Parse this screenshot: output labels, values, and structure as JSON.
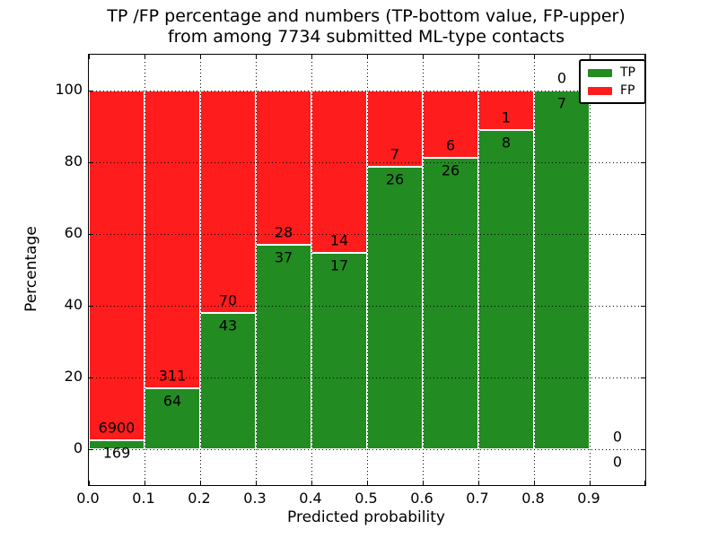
{
  "title": {
    "line1": "TP /FP percentage and numbers (TP-bottom value, FP-upper)",
    "line2": "from among 7734 submitted ML-type contacts"
  },
  "axes": {
    "xlabel": "Predicted probability",
    "ylabel": "Percentage"
  },
  "chart_data": {
    "type": "bar",
    "stacked": true,
    "units": "percent_of_bin_total",
    "title": "TP /FP percentage and numbers (TP-bottom value, FP-upper) from among 7734 submitted ML-type contacts",
    "xlabel": "Predicted probability",
    "ylabel": "Percentage",
    "total_contacts": 7734,
    "bin_width": 0.1,
    "bin_starts": [
      0.0,
      0.1,
      0.2,
      0.3,
      0.4,
      0.5,
      0.6,
      0.7,
      0.8,
      0.9
    ],
    "series": [
      {
        "name": "TP",
        "color": "#228b22",
        "counts": [
          169,
          64,
          43,
          37,
          17,
          26,
          26,
          8,
          7,
          0
        ]
      },
      {
        "name": "FP",
        "color": "#ff1c1c",
        "counts": [
          6900,
          311,
          70,
          28,
          14,
          7,
          6,
          1,
          0,
          0
        ]
      }
    ],
    "tp_percent_by_bin": [
      2.39,
      17.07,
      38.05,
      56.92,
      54.84,
      78.79,
      81.25,
      88.89,
      100.0,
      null
    ],
    "xlim": [
      0.0,
      1.0
    ],
    "ylim": [
      -10,
      110
    ],
    "yticks": [
      "0",
      "20",
      "40",
      "60",
      "80",
      "100"
    ],
    "xticks": [
      "0.0",
      "0.1",
      "0.2",
      "0.3",
      "0.4",
      "0.5",
      "0.6",
      "0.7",
      "0.8",
      "0.9"
    ],
    "grid": true,
    "grid_color": "#000000",
    "bar_edge_color": "#ffffff",
    "legend_position": "upper right"
  }
}
